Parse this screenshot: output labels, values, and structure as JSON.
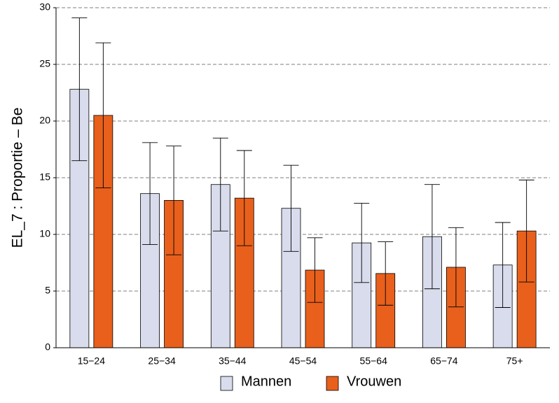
{
  "chart_data": {
    "type": "bar",
    "y_label": "EL_7 : Proportie  –  Be",
    "categories": [
      "15−24",
      "25−34",
      "35−44",
      "45−54",
      "55−64",
      "65−74",
      "75+"
    ],
    "series": [
      {
        "name": "Mannen",
        "color": "#d9dcec",
        "values": [
          22.8,
          13.6,
          14.4,
          12.3,
          9.25,
          9.8,
          7.3
        ],
        "errors": [
          6.3,
          4.5,
          4.1,
          3.8,
          3.5,
          4.6,
          3.75
        ]
      },
      {
        "name": "Vrouwen",
        "color": "#e8601c",
        "values": [
          20.5,
          13.0,
          13.2,
          6.85,
          6.55,
          7.1,
          10.3
        ],
        "errors": [
          6.4,
          4.8,
          4.2,
          2.85,
          2.8,
          3.5,
          4.5
        ]
      }
    ],
    "ylim": [
      0,
      30
    ],
    "yticks": [
      0,
      5,
      10,
      15,
      20,
      25,
      30
    ],
    "grid": true
  }
}
